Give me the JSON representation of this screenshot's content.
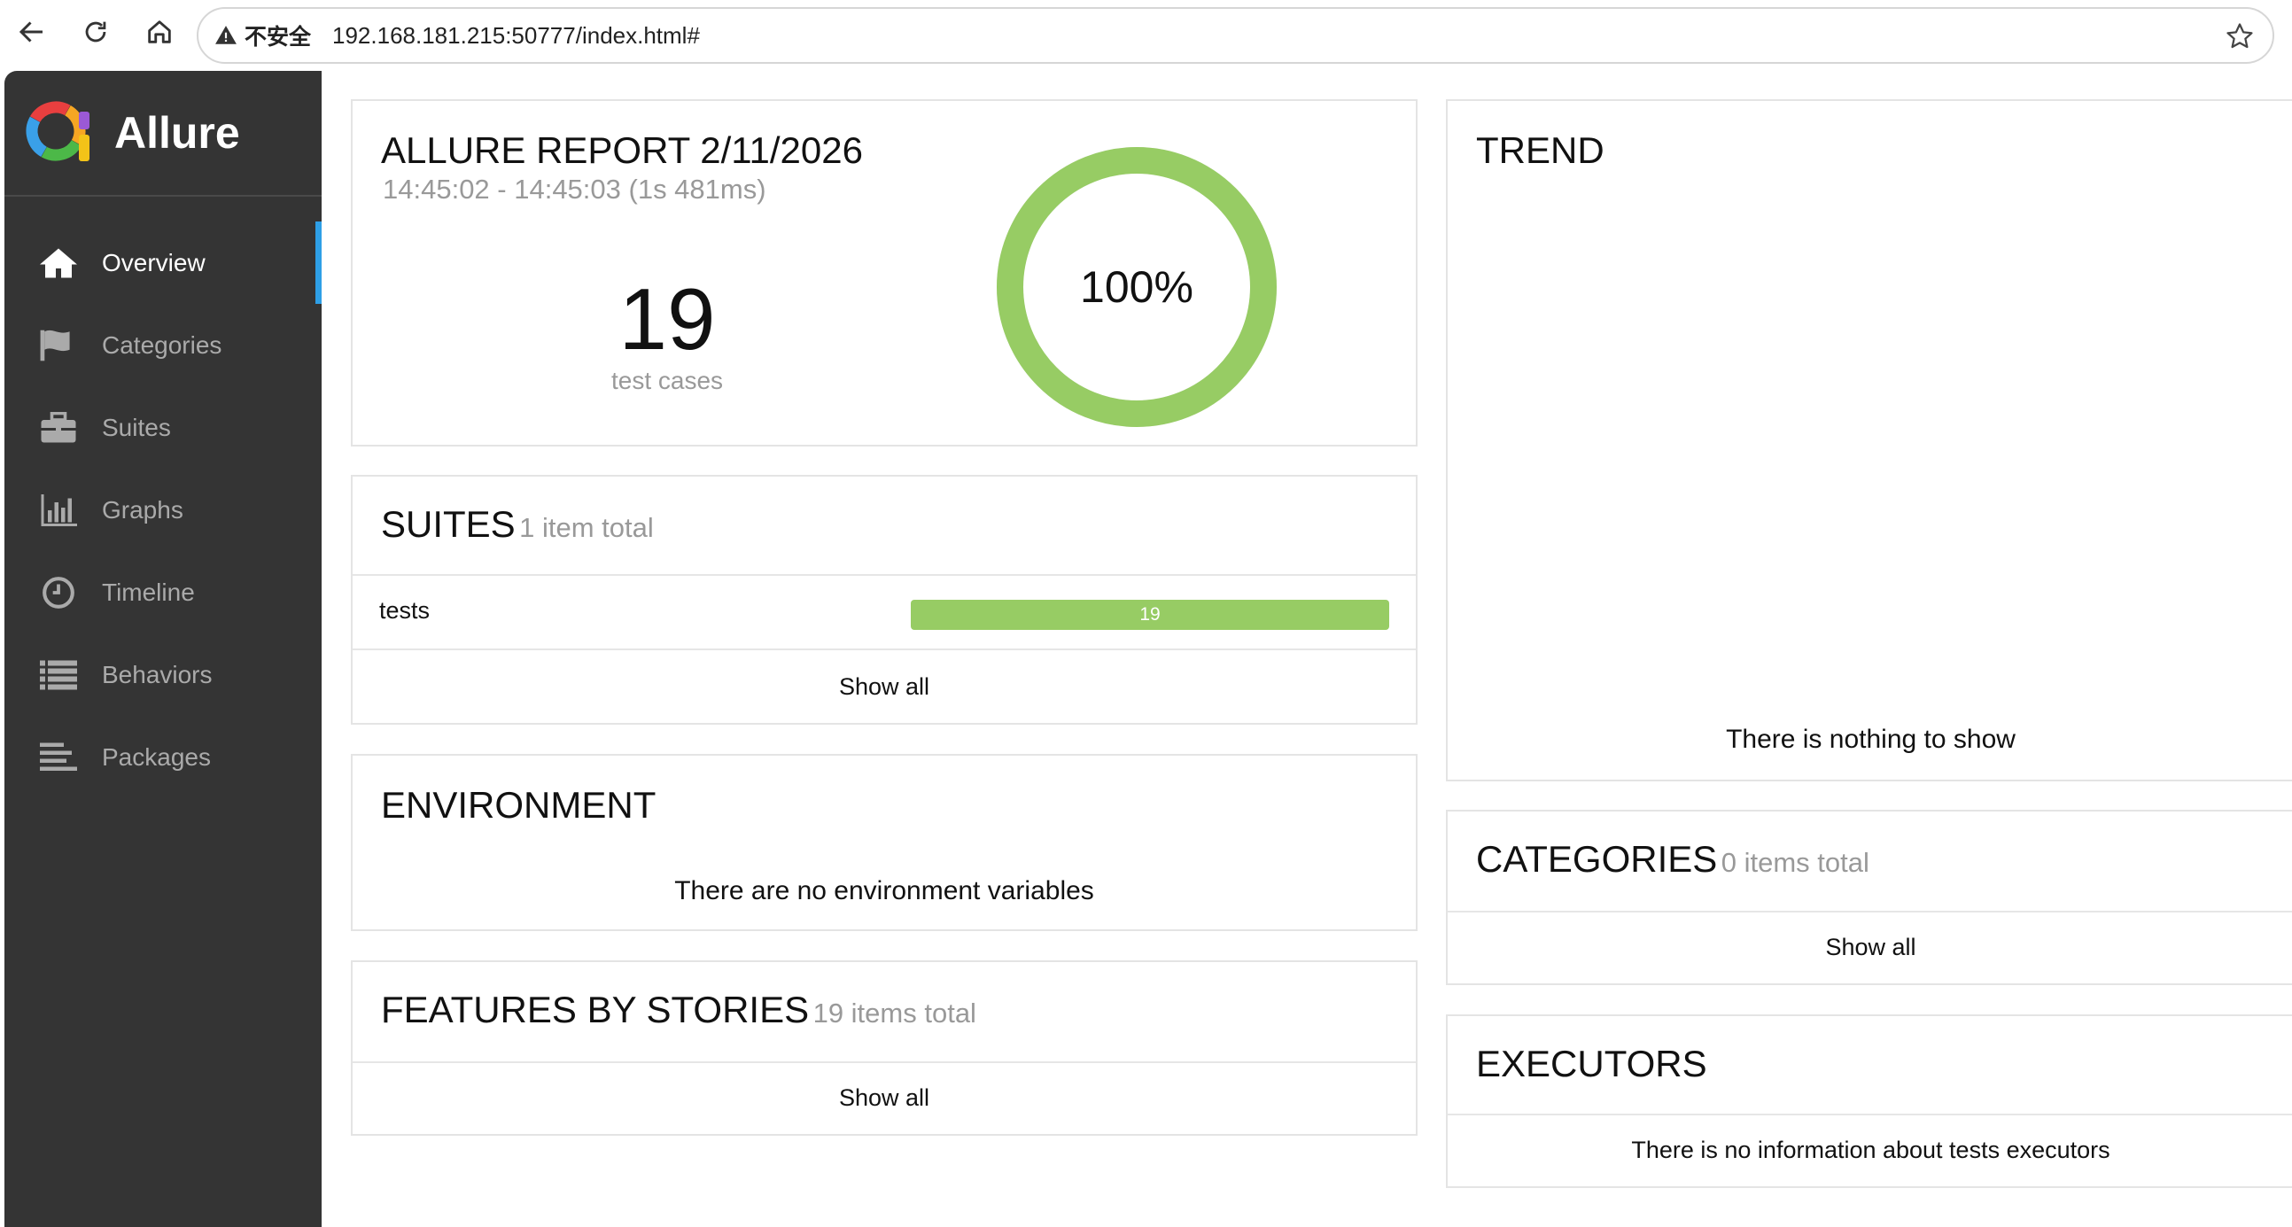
{
  "browser": {
    "insecure_label": "不安全",
    "url": "192.168.181.215:50777/index.html#"
  },
  "sidebar": {
    "brand": "Allure",
    "items": [
      {
        "label": "Overview",
        "icon": "home-icon",
        "active": true
      },
      {
        "label": "Categories",
        "icon": "flag-icon"
      },
      {
        "label": "Suites",
        "icon": "briefcase-icon"
      },
      {
        "label": "Graphs",
        "icon": "bar-chart-icon"
      },
      {
        "label": "Timeline",
        "icon": "clock-icon"
      },
      {
        "label": "Behaviors",
        "icon": "list-icon"
      },
      {
        "label": "Packages",
        "icon": "align-left-icon"
      }
    ]
  },
  "summary": {
    "title": "ALLURE REPORT 2/11/2026",
    "time": "14:45:02 - 14:45:03 (1s 481ms)",
    "count": "19",
    "count_label": "test cases",
    "percent": "100%",
    "pass_rate": 1.0,
    "color": "#97cc64"
  },
  "suites": {
    "title": "SUITES",
    "subtitle": "1 item total",
    "rows": [
      {
        "name": "tests",
        "passed": "19",
        "fraction": 1.0
      }
    ],
    "show_all": "Show all"
  },
  "environment": {
    "title": "ENVIRONMENT",
    "empty": "There are no environment variables"
  },
  "features": {
    "title": "FEATURES BY STORIES",
    "subtitle": "19 items total",
    "show_all": "Show all"
  },
  "trend": {
    "title": "TREND",
    "empty": "There is nothing to show"
  },
  "categories": {
    "title": "CATEGORIES",
    "subtitle": "0 items total",
    "show_all": "Show all"
  },
  "executors": {
    "title": "EXECUTORS",
    "empty": "There is no information about tests executors"
  }
}
